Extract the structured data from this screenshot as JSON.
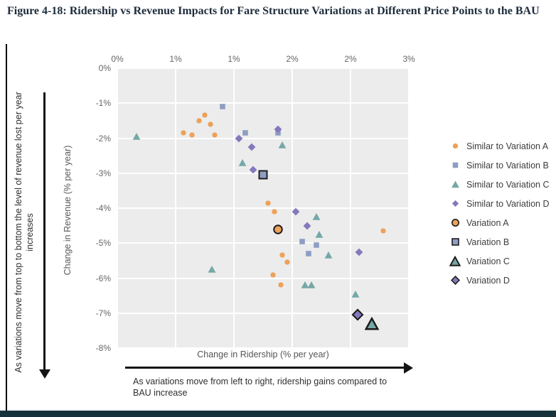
{
  "figure": {
    "title": "Figure 4-18: Ridership vs Revenue Impacts for Fare Structure Variations at Different Price Points to the BAU"
  },
  "annotations": {
    "left": "As variations move from top to bottom the level of revenue lost per year increases",
    "bottom": "As variations move from left to right, ridership gains compared to BAU increase"
  },
  "colors": {
    "pane_background": "#ECECEC",
    "gridline": "#FFFFFF",
    "outline": "#1B1B1B",
    "bottom_bar": "#16333C",
    "title_text": "#1D2C3C",
    "axis_text": "#666666"
  },
  "chart_data": {
    "type": "scatter",
    "xlabel": "Change in Ridership (% per year)",
    "ylabel": "Change in Revenue (% per year)",
    "xlim": [
      0,
      3
    ],
    "ylim": [
      -8,
      0
    ],
    "x_tick_labels": [
      "0%",
      "1%",
      "1%",
      "2%",
      "2%",
      "3%"
    ],
    "y_tick_labels": [
      "0%",
      "-1%",
      "-2%",
      "-3%",
      "-4%",
      "-5%",
      "-6%",
      "-7%",
      "-8%"
    ],
    "grid": true,
    "legend_position": "right",
    "outline_color": "#1B1B1B",
    "series": [
      {
        "name": "Similar to Variation A",
        "marker": "circle",
        "color": "#EDA159",
        "outlined": false,
        "points": [
          [
            0.68,
            -1.85
          ],
          [
            0.77,
            -1.9
          ],
          [
            0.84,
            -1.5
          ],
          [
            0.9,
            -1.35
          ],
          [
            0.96,
            -1.6
          ],
          [
            1.0,
            -1.9
          ],
          [
            1.55,
            -3.85
          ],
          [
            1.62,
            -4.1
          ],
          [
            1.7,
            -5.35
          ],
          [
            1.75,
            -5.55
          ],
          [
            1.6,
            -5.9
          ],
          [
            1.68,
            -6.2
          ],
          [
            2.74,
            -4.65
          ]
        ]
      },
      {
        "name": "Similar to Variation B",
        "marker": "square",
        "color": "#8D9DC3",
        "outlined": false,
        "points": [
          [
            1.08,
            -1.1
          ],
          [
            1.32,
            -1.85
          ],
          [
            1.65,
            -1.85
          ],
          [
            1.9,
            -4.95
          ],
          [
            2.05,
            -5.05
          ],
          [
            1.97,
            -5.3
          ]
        ]
      },
      {
        "name": "Similar to Variation C",
        "marker": "triangle",
        "color": "#74A8A6",
        "outlined": false,
        "points": [
          [
            0.2,
            -1.95
          ],
          [
            1.29,
            -2.7
          ],
          [
            1.7,
            -2.2
          ],
          [
            0.97,
            -5.75
          ],
          [
            2.05,
            -4.25
          ],
          [
            2.08,
            -4.75
          ],
          [
            2.17,
            -5.35
          ],
          [
            1.93,
            -6.2
          ],
          [
            2.0,
            -6.2
          ],
          [
            2.45,
            -6.45
          ]
        ]
      },
      {
        "name": "Similar to Variation D",
        "marker": "diamond",
        "color": "#8678BC",
        "outlined": false,
        "points": [
          [
            1.25,
            -2.0
          ],
          [
            1.38,
            -2.25
          ],
          [
            1.65,
            -1.75
          ],
          [
            1.4,
            -2.9
          ],
          [
            1.84,
            -4.1
          ],
          [
            1.95,
            -4.5
          ],
          [
            2.49,
            -5.25
          ]
        ]
      },
      {
        "name": "Variation A",
        "marker": "circle",
        "color": "#EDA159",
        "outlined": true,
        "points": [
          [
            1.65,
            -4.6
          ]
        ]
      },
      {
        "name": "Variation B",
        "marker": "square",
        "color": "#8D9DC3",
        "outlined": true,
        "points": [
          [
            1.5,
            -3.05
          ]
        ]
      },
      {
        "name": "Variation C",
        "marker": "triangle",
        "color": "#74A8A6",
        "outlined": true,
        "points": [
          [
            2.62,
            -7.3
          ]
        ]
      },
      {
        "name": "Variation D",
        "marker": "diamond",
        "color": "#8678BC",
        "outlined": true,
        "points": [
          [
            2.47,
            -7.05
          ]
        ]
      }
    ]
  }
}
